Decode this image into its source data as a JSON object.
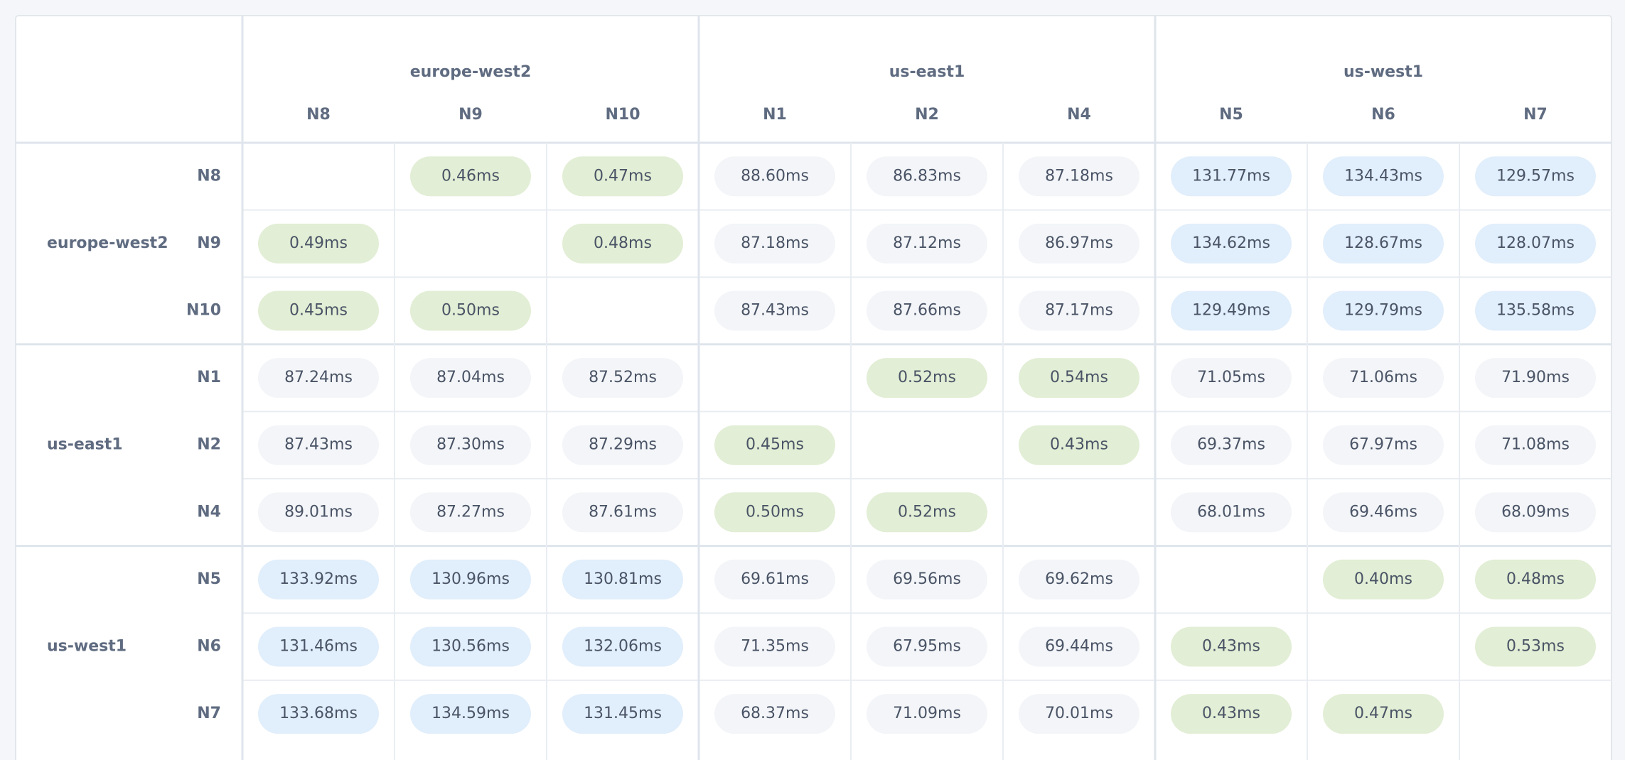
{
  "column_groups": [
    {
      "label": "europe-west2",
      "nodes": [
        "N8",
        "N9",
        "N10"
      ]
    },
    {
      "label": "us-east1",
      "nodes": [
        "N1",
        "N2",
        "N4"
      ]
    },
    {
      "label": "us-west1",
      "nodes": [
        "N5",
        "N6",
        "N7"
      ]
    }
  ],
  "row_groups": [
    {
      "label": "europe-west2",
      "rows": [
        {
          "node": "N8",
          "cells": [
            null,
            "0.46ms",
            "0.47ms",
            "88.60ms",
            "86.83ms",
            "87.18ms",
            "131.77ms",
            "134.43ms",
            "129.57ms"
          ]
        },
        {
          "node": "N9",
          "cells": [
            "0.49ms",
            null,
            "0.48ms",
            "87.18ms",
            "87.12ms",
            "86.97ms",
            "134.62ms",
            "128.67ms",
            "128.07ms"
          ]
        },
        {
          "node": "N10",
          "cells": [
            "0.45ms",
            "0.50ms",
            null,
            "87.43ms",
            "87.66ms",
            "87.17ms",
            "129.49ms",
            "129.79ms",
            "135.58ms"
          ]
        }
      ]
    },
    {
      "label": "us-east1",
      "rows": [
        {
          "node": "N1",
          "cells": [
            "87.24ms",
            "87.04ms",
            "87.52ms",
            null,
            "0.52ms",
            "0.54ms",
            "71.05ms",
            "71.06ms",
            "71.90ms"
          ]
        },
        {
          "node": "N2",
          "cells": [
            "87.43ms",
            "87.30ms",
            "87.29ms",
            "0.45ms",
            null,
            "0.43ms",
            "69.37ms",
            "67.97ms",
            "71.08ms"
          ]
        },
        {
          "node": "N4",
          "cells": [
            "89.01ms",
            "87.27ms",
            "87.61ms",
            "0.50ms",
            "0.52ms",
            null,
            "68.01ms",
            "69.46ms",
            "68.09ms"
          ]
        }
      ]
    },
    {
      "label": "us-west1",
      "rows": [
        {
          "node": "N5",
          "cells": [
            "133.92ms",
            "130.96ms",
            "130.81ms",
            "69.61ms",
            "69.56ms",
            "69.62ms",
            null,
            "0.40ms",
            "0.48ms"
          ]
        },
        {
          "node": "N6",
          "cells": [
            "131.46ms",
            "130.56ms",
            "132.06ms",
            "71.35ms",
            "67.95ms",
            "69.44ms",
            "0.43ms",
            null,
            "0.53ms"
          ]
        },
        {
          "node": "N7",
          "cells": [
            "133.68ms",
            "134.59ms",
            "131.45ms",
            "68.37ms",
            "71.09ms",
            "70.01ms",
            "0.43ms",
            "0.47ms",
            null
          ]
        }
      ]
    }
  ]
}
